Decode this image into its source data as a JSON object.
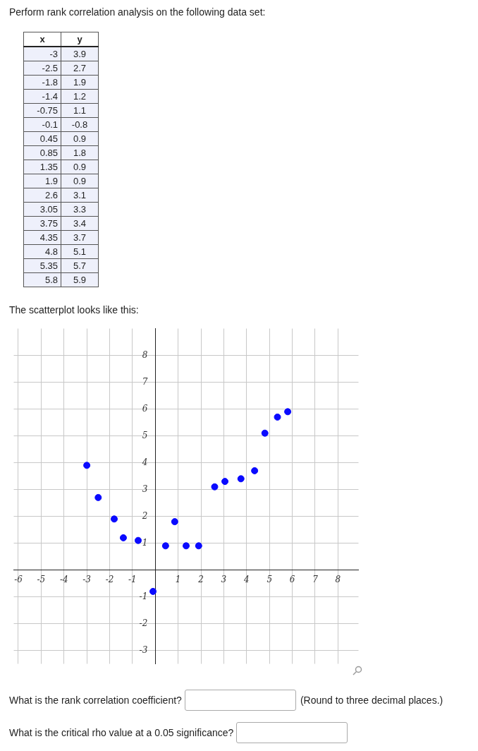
{
  "chart_data": [
    {
      "type": "other",
      "title": "Perform rank correlation analysis on the following data set:",
      "annotations": [
        "x",
        "y",
        "-3",
        "3.9",
        "-2.5",
        "2.7",
        "-1.8",
        "1.9",
        "-1.4",
        "1.2",
        "-0.75",
        "1.1",
        "-0.1",
        "-0.8",
        "0.45",
        "0.9",
        "0.85",
        "1.8",
        "1.35",
        "0.9",
        "1.9",
        "0.9",
        "2.6",
        "3.1",
        "3.05",
        "3.3",
        "3.75",
        "3.4",
        "4.35",
        "3.7",
        "4.8",
        "5.1",
        "5.35",
        "5.7",
        "5.8",
        "5.9"
      ]
    },
    {
      "type": "scatter",
      "title": "The scatterplot looks like this:",
      "x": [
        -3,
        -2.5,
        -1.8,
        -1.4,
        -0.75,
        -0.1,
        0.45,
        0.85,
        1.35,
        1.9,
        2.6,
        3.05,
        3.75,
        4.35,
        4.8,
        5.35,
        5.8
      ],
      "series": [
        {
          "color": "#0a0aff",
          "values": [
            3.9,
            2.7,
            1.9,
            1.2,
            1.1,
            -0.8,
            0.9,
            1.8,
            0.9,
            0.9,
            3.1,
            3.3,
            3.4,
            3.7,
            5.1,
            5.7,
            5.9
          ]
        }
      ],
      "marker": "circle",
      "grid": true,
      "legend": false,
      "xlim": [
        -6.2,
        8.9
      ],
      "ylim": [
        -3.5,
        9
      ],
      "xticks": [
        -6,
        -5,
        -4,
        -3,
        -2,
        -1,
        {
          "value": 0,
          "label": null
        },
        1,
        2,
        3,
        4,
        5,
        6,
        7,
        8
      ],
      "yticks": [
        -3,
        -2,
        -1,
        {
          "value": 0,
          "label": null
        },
        1,
        2,
        3,
        4,
        5,
        6,
        7,
        8
      ],
      "annotations": [
        "What is the rank correlation coefficient?",
        "(Round to three decimal places.)",
        "What is the critical rho value at a 0.05 significance?"
      ]
    }
  ]
}
